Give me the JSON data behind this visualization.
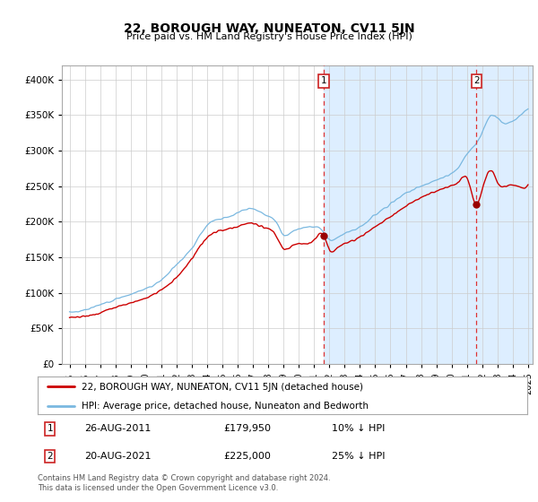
{
  "title": "22, BOROUGH WAY, NUNEATON, CV11 5JN",
  "subtitle": "Price paid vs. HM Land Registry's House Price Index (HPI)",
  "hpi_label": "HPI: Average price, detached house, Nuneaton and Bedworth",
  "property_label": "22, BOROUGH WAY, NUNEATON, CV11 5JN (detached house)",
  "sale1_date": "26-AUG-2011",
  "sale1_price": 179950,
  "sale1_pct": "10% ↓ HPI",
  "sale2_date": "20-AUG-2021",
  "sale2_price": 225000,
  "sale2_pct": "25% ↓ HPI",
  "copyright": "Contains HM Land Registry data © Crown copyright and database right 2024.\nThis data is licensed under the Open Government Licence v3.0.",
  "hpi_color": "#7ab8e0",
  "property_color": "#cc0000",
  "marker_color": "#990000",
  "dashed_line_color": "#dd3333",
  "shaded_region_color": "#ddeeff",
  "grid_color": "#cccccc",
  "ylim": [
    0,
    420000
  ],
  "yticks": [
    0,
    50000,
    100000,
    150000,
    200000,
    250000,
    300000,
    350000,
    400000
  ],
  "start_year": 1995,
  "end_year": 2025,
  "sale1_year": 2011.65,
  "sale2_year": 2021.63,
  "hpi_key_years": [
    1995,
    1996,
    1997,
    1998,
    1999,
    2000,
    2001,
    2002,
    2003,
    2004,
    2005,
    2006,
    2007,
    2007.8,
    2008.5,
    2009,
    2009.5,
    2010,
    2011,
    2011.5,
    2012,
    2012.5,
    2013,
    2014,
    2015,
    2016,
    2017,
    2018,
    2019,
    2019.5,
    2020,
    2020.5,
    2021,
    2021.5,
    2022,
    2022.3,
    2022.7,
    2023,
    2023.5,
    2024,
    2024.5,
    2025
  ],
  "hpi_key_prices": [
    73000,
    76000,
    83000,
    91000,
    98000,
    106000,
    118000,
    140000,
    163000,
    195000,
    205000,
    212000,
    218000,
    210000,
    200000,
    182000,
    185000,
    190000,
    193000,
    188000,
    175000,
    177000,
    183000,
    192000,
    210000,
    225000,
    240000,
    250000,
    258000,
    263000,
    268000,
    278000,
    295000,
    308000,
    325000,
    340000,
    350000,
    345000,
    338000,
    342000,
    350000,
    360000
  ],
  "prop_key_years": [
    1995,
    1996,
    1997,
    1998,
    1999,
    2000,
    2001,
    2002,
    2003,
    2004,
    2005,
    2006,
    2007,
    2007.8,
    2008.5,
    2009,
    2009.5,
    2010,
    2011,
    2011.65,
    2012,
    2012.5,
    2013,
    2014,
    2015,
    2016,
    2017,
    2018,
    2019,
    2019.5,
    2020,
    2020.5,
    2021,
    2021.63,
    2022,
    2022.3,
    2022.7,
    2023,
    2023.5,
    2024,
    2024.5,
    2025
  ],
  "prop_key_prices": [
    65000,
    67000,
    72000,
    80000,
    86000,
    93000,
    104000,
    122000,
    148000,
    178000,
    188000,
    193000,
    198000,
    191000,
    181000,
    162000,
    165000,
    169000,
    174000,
    179950,
    160000,
    163000,
    169000,
    178000,
    193000,
    207000,
    222000,
    234000,
    243000,
    247000,
    251000,
    257000,
    262000,
    225000,
    245000,
    265000,
    270000,
    255000,
    250000,
    252000,
    248000,
    252000
  ]
}
